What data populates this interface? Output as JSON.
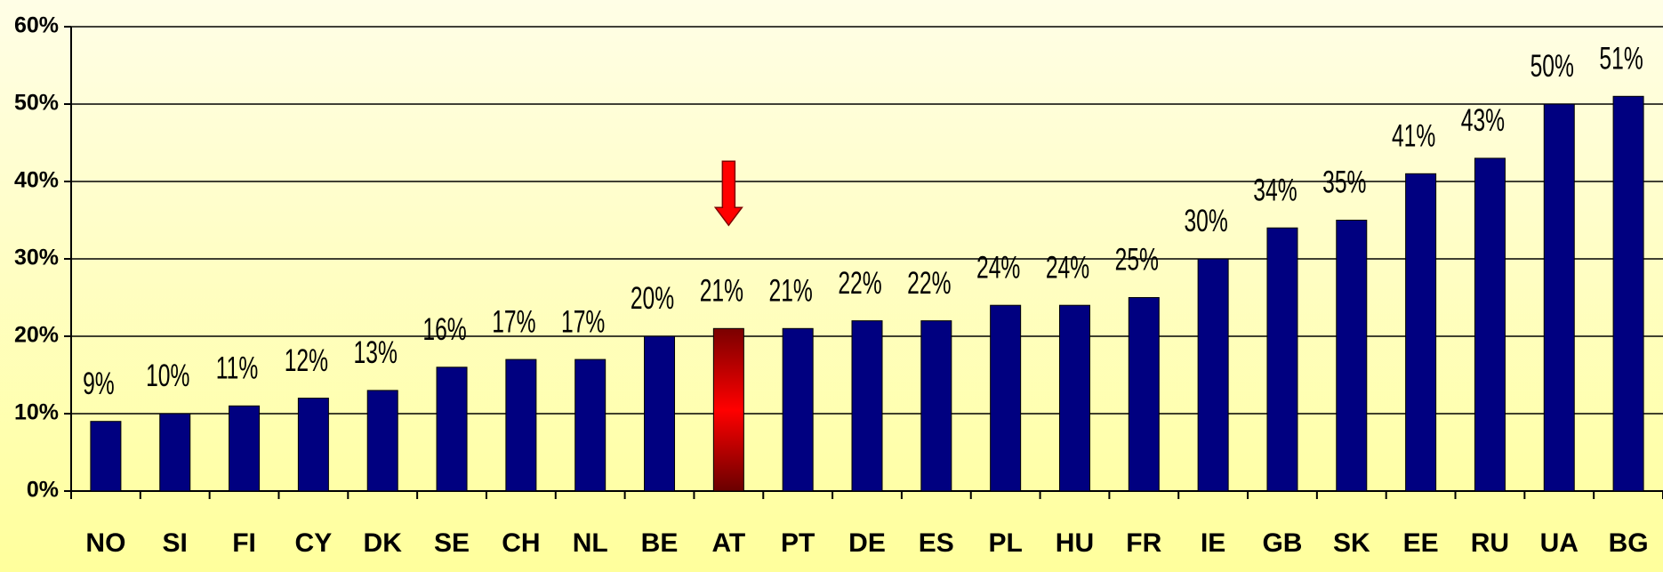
{
  "chart_data": {
    "type": "bar",
    "categories": [
      "NO",
      "SI",
      "FI",
      "CY",
      "DK",
      "SE",
      "CH",
      "NL",
      "BE",
      "AT",
      "PT",
      "DE",
      "ES",
      "PL",
      "HU",
      "FR",
      "IE",
      "GB",
      "SK",
      "EE",
      "RU",
      "UA",
      "BG"
    ],
    "values": [
      9,
      10,
      11,
      12,
      13,
      16,
      17,
      17,
      20,
      21,
      21,
      22,
      22,
      24,
      24,
      25,
      30,
      34,
      35,
      41,
      43,
      50,
      51
    ],
    "value_labels": [
      "9%",
      "10%",
      "11%",
      "12%",
      "13%",
      "16%",
      "17%",
      "17%",
      "20%",
      "21%",
      "21%",
      "22%",
      "22%",
      "24%",
      "24%",
      "25%",
      "30%",
      "34%",
      "35%",
      "41%",
      "43%",
      "50%",
      "51%"
    ],
    "colors": [
      "#000080",
      "#000080",
      "#000080",
      "#000080",
      "#000080",
      "#000080",
      "#000080",
      "#000080",
      "#000080",
      "#e00000",
      "#000080",
      "#000080",
      "#000080",
      "#000080",
      "#000080",
      "#000080",
      "#000080",
      "#000080",
      "#000080",
      "#000080",
      "#000080",
      "#000080",
      "#000080"
    ],
    "ylim": [
      0,
      60
    ],
    "yticks": [
      {
        "value": 0,
        "label": "0%"
      },
      {
        "value": 10,
        "label": "10%"
      },
      {
        "value": 20,
        "label": "20%"
      },
      {
        "value": 30,
        "label": "30%"
      },
      {
        "value": 40,
        "label": "40%"
      },
      {
        "value": 50,
        "label": "50%"
      },
      {
        "value": 60,
        "label": "60%"
      }
    ],
    "grid": true
  }
}
